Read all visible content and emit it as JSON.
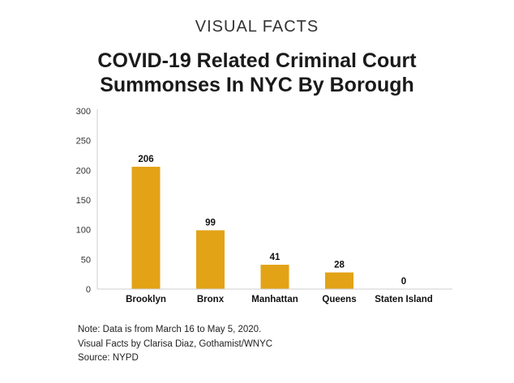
{
  "header": {
    "kicker": "VISUAL FACTS",
    "title_line1": "COVID-19 Related Criminal Court",
    "title_line2": "Summonses In NYC By Borough"
  },
  "chart_data": {
    "type": "bar",
    "categories": [
      "Brooklyn",
      "Bronx",
      "Manhattan",
      "Queens",
      "Staten Island"
    ],
    "values": [
      206,
      99,
      41,
      28,
      0
    ],
    "data_labels": [
      "206",
      "99",
      "41",
      "28",
      "0"
    ],
    "yticks": [
      "0",
      "50",
      "100",
      "150",
      "200",
      "250",
      "300"
    ],
    "ylim": [
      0,
      300
    ],
    "bar_color": "#E3A317",
    "grid": false,
    "legend": "none"
  },
  "notes": {
    "line1": "Note: Data is from March 16 to May 5, 2020.",
    "line2": "Visual Facts by Clarisa Diaz, Gothamist/WNYC",
    "line3": "Source: NYPD"
  }
}
